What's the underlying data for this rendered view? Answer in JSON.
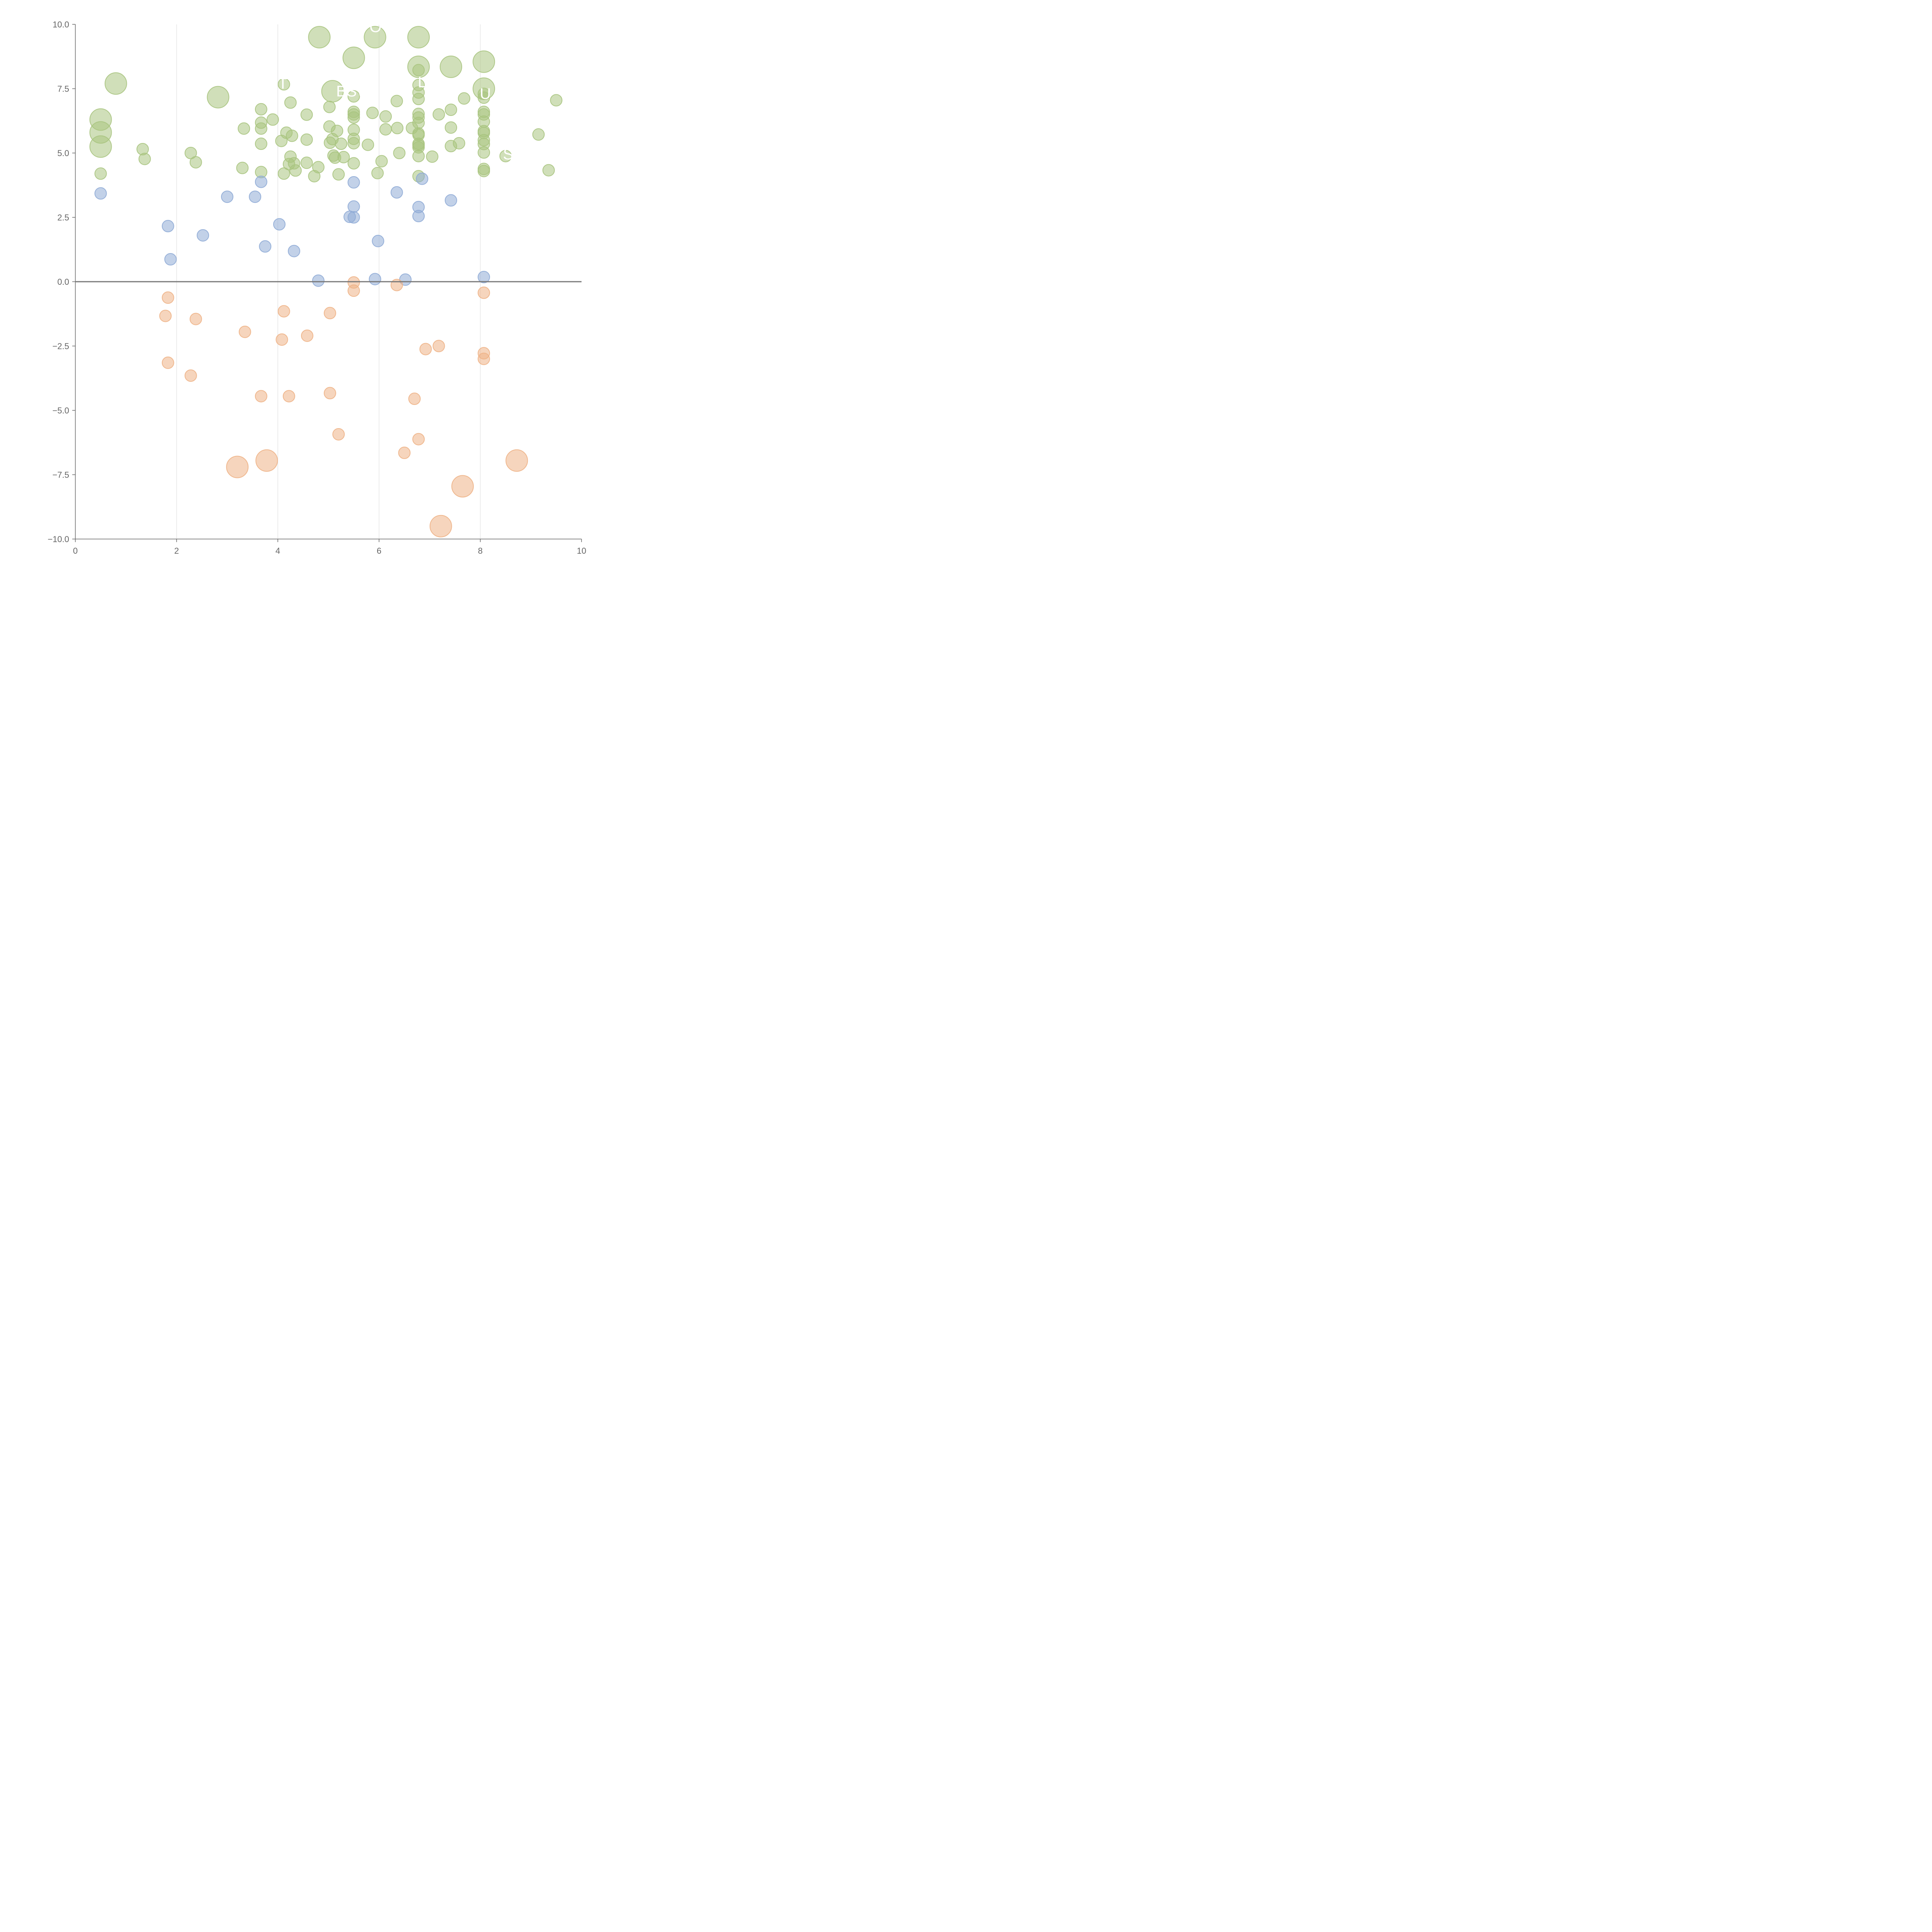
{
  "chart_data": {
    "type": "scatter",
    "subtype": "bubble",
    "title": "",
    "xlabel": "",
    "ylabel": "",
    "xlim": [
      0,
      10
    ],
    "ylim": [
      -10,
      10
    ],
    "x_ticks": [
      0,
      2,
      4,
      6,
      8,
      10
    ],
    "x_tick_labels": [
      "0",
      "2",
      "4",
      "6",
      "8",
      "10"
    ],
    "y_ticks": [
      -10,
      -7.5,
      -5,
      -2.5,
      0,
      2.5,
      5,
      7.5,
      10
    ],
    "y_tick_labels": [
      "−10.0",
      "−7.5",
      "−5.0",
      "−2.5",
      "0.0",
      "2.5",
      "5.0",
      "7.5",
      "10.0"
    ],
    "vertical_grid": [
      2,
      4,
      6,
      8
    ],
    "horizontal_reference_line": 0,
    "legend": "none",
    "series": [
      {
        "color": "#a9c47f",
        "points": [
          [
            0.8,
            7.7,
            2
          ],
          [
            0.5,
            6.3,
            2
          ],
          [
            0.5,
            5.8,
            2
          ],
          [
            0.5,
            5.25,
            2
          ],
          [
            0.5,
            4.2,
            1
          ],
          [
            1.33,
            5.15,
            1
          ],
          [
            1.37,
            4.77,
            1
          ],
          [
            2.28,
            5.0,
            1
          ],
          [
            2.38,
            4.64,
            1
          ],
          [
            2.82,
            7.17,
            2
          ],
          [
            3.33,
            5.95,
            1
          ],
          [
            3.3,
            4.42,
            1
          ],
          [
            3.67,
            6.7,
            1
          ],
          [
            3.67,
            6.18,
            1
          ],
          [
            3.67,
            5.95,
            1
          ],
          [
            3.67,
            5.36,
            1
          ],
          [
            3.67,
            4.26,
            1
          ],
          [
            3.9,
            6.3,
            1
          ],
          [
            4.12,
            7.67,
            1
          ],
          [
            4.07,
            5.47,
            1
          ],
          [
            4.12,
            4.2,
            1
          ],
          [
            4.17,
            5.79,
            1
          ],
          [
            4.25,
            6.96,
            1
          ],
          [
            4.28,
            5.67,
            1
          ],
          [
            4.25,
            4.86,
            1
          ],
          [
            4.22,
            4.57,
            1
          ],
          [
            4.32,
            4.6,
            1
          ],
          [
            4.35,
            4.32,
            1
          ],
          [
            4.57,
            6.49,
            1
          ],
          [
            4.57,
            5.52,
            1
          ],
          [
            4.57,
            4.62,
            1
          ],
          [
            4.72,
            4.1,
            1
          ],
          [
            4.8,
            4.45,
            1
          ],
          [
            4.82,
            9.5,
            2
          ],
          [
            5.02,
            6.03,
            1
          ],
          [
            5.02,
            6.79,
            1
          ],
          [
            5.03,
            5.4,
            1
          ],
          [
            5.08,
            7.4,
            2
          ],
          [
            5.1,
            4.9,
            1
          ],
          [
            5.08,
            5.54,
            1
          ],
          [
            5.13,
            4.82,
            1
          ],
          [
            5.17,
            5.86,
            1
          ],
          [
            5.2,
            4.17,
            1
          ],
          [
            5.25,
            5.36,
            1
          ],
          [
            5.3,
            4.84,
            1
          ],
          [
            5.5,
            8.7,
            2
          ],
          [
            5.5,
            7.2,
            1
          ],
          [
            5.5,
            6.6,
            1
          ],
          [
            5.5,
            6.5,
            1
          ],
          [
            5.5,
            6.38,
            1
          ],
          [
            5.5,
            5.9,
            1
          ],
          [
            5.5,
            5.55,
            1
          ],
          [
            5.5,
            5.38,
            1
          ],
          [
            5.5,
            4.6,
            1
          ],
          [
            5.78,
            5.32,
            1
          ],
          [
            5.87,
            6.56,
            1
          ],
          [
            5.92,
            9.5,
            2
          ],
          [
            5.97,
            4.22,
            1
          ],
          [
            6.05,
            4.68,
            1
          ],
          [
            6.13,
            6.42,
            1
          ],
          [
            6.13,
            5.92,
            1
          ],
          [
            6.35,
            7.02,
            1
          ],
          [
            6.36,
            5.97,
            1
          ],
          [
            6.4,
            5.0,
            1
          ],
          [
            6.65,
            5.97,
            1
          ],
          [
            6.78,
            9.5,
            2
          ],
          [
            6.78,
            8.35,
            2
          ],
          [
            6.78,
            8.22,
            1
          ],
          [
            6.78,
            7.64,
            1
          ],
          [
            6.78,
            7.35,
            1
          ],
          [
            6.78,
            7.1,
            1
          ],
          [
            6.78,
            6.52,
            1
          ],
          [
            6.78,
            6.38,
            1
          ],
          [
            6.78,
            6.17,
            1
          ],
          [
            6.78,
            5.76,
            1
          ],
          [
            6.78,
            5.7,
            1
          ],
          [
            6.78,
            5.36,
            1
          ],
          [
            6.78,
            5.3,
            1
          ],
          [
            6.78,
            5.22,
            1
          ],
          [
            6.78,
            4.88,
            1
          ],
          [
            6.78,
            4.1,
            1
          ],
          [
            7.05,
            4.86,
            1
          ],
          [
            7.18,
            6.5,
            1
          ],
          [
            7.42,
            8.35,
            2
          ],
          [
            7.42,
            6.68,
            1
          ],
          [
            7.42,
            5.99,
            1
          ],
          [
            7.42,
            5.27,
            1
          ],
          [
            7.58,
            5.38,
            1
          ],
          [
            7.68,
            7.12,
            1
          ],
          [
            8.07,
            8.55,
            2
          ],
          [
            8.07,
            7.5,
            2
          ],
          [
            8.07,
            7.3,
            1
          ],
          [
            8.07,
            7.15,
            1
          ],
          [
            8.07,
            6.6,
            1
          ],
          [
            8.07,
            6.5,
            1
          ],
          [
            8.07,
            6.22,
            1
          ],
          [
            8.07,
            5.85,
            1
          ],
          [
            8.07,
            5.78,
            1
          ],
          [
            8.07,
            5.5,
            1
          ],
          [
            8.07,
            5.35,
            1
          ],
          [
            8.07,
            5.02,
            1
          ],
          [
            8.07,
            4.38,
            1
          ],
          [
            8.07,
            4.3,
            1
          ],
          [
            8.5,
            4.88,
            1
          ],
          [
            9.15,
            5.72,
            1
          ],
          [
            9.35,
            4.33,
            1
          ],
          [
            9.5,
            7.05,
            1
          ]
        ]
      },
      {
        "color": "#8fabd6",
        "points": [
          [
            0.5,
            3.43,
            1
          ],
          [
            1.83,
            2.16,
            1
          ],
          [
            1.88,
            0.87,
            1
          ],
          [
            2.52,
            1.8,
            1
          ],
          [
            3.0,
            3.3,
            1
          ],
          [
            3.55,
            3.3,
            1
          ],
          [
            3.67,
            3.88,
            1
          ],
          [
            3.75,
            1.37,
            1
          ],
          [
            4.03,
            2.23,
            1
          ],
          [
            4.32,
            1.19,
            1
          ],
          [
            4.8,
            0.04,
            1
          ],
          [
            5.42,
            2.52,
            1
          ],
          [
            5.5,
            3.86,
            1
          ],
          [
            5.5,
            2.92,
            1
          ],
          [
            5.5,
            2.5,
            1
          ],
          [
            5.92,
            0.1,
            1
          ],
          [
            5.98,
            1.58,
            1
          ],
          [
            6.35,
            3.47,
            1
          ],
          [
            6.52,
            0.08,
            1
          ],
          [
            6.78,
            2.9,
            1
          ],
          [
            6.78,
            2.55,
            1
          ],
          [
            6.85,
            4.0,
            1
          ],
          [
            7.42,
            3.16,
            1
          ],
          [
            8.07,
            0.18,
            1
          ]
        ]
      },
      {
        "color": "#eeb286",
        "points": [
          [
            1.83,
            -0.62,
            1
          ],
          [
            1.78,
            -1.33,
            1
          ],
          [
            1.83,
            -3.15,
            1
          ],
          [
            2.38,
            -1.45,
            1
          ],
          [
            2.28,
            -3.65,
            1
          ],
          [
            3.2,
            -7.2,
            2
          ],
          [
            3.35,
            -1.95,
            1
          ],
          [
            3.67,
            -4.45,
            1
          ],
          [
            3.78,
            -6.95,
            2
          ],
          [
            4.12,
            -1.15,
            1
          ],
          [
            4.08,
            -2.25,
            1
          ],
          [
            4.22,
            -4.45,
            1
          ],
          [
            4.58,
            -2.1,
            1
          ],
          [
            5.03,
            -1.22,
            1
          ],
          [
            5.03,
            -4.33,
            1
          ],
          [
            5.2,
            -5.93,
            1
          ],
          [
            5.5,
            -0.03,
            1
          ],
          [
            5.5,
            -0.35,
            1
          ],
          [
            6.35,
            -0.13,
            1
          ],
          [
            6.5,
            -6.65,
            1
          ],
          [
            6.7,
            -4.55,
            1
          ],
          [
            6.78,
            -6.12,
            1
          ],
          [
            6.92,
            -2.62,
            1
          ],
          [
            7.18,
            -2.5,
            1
          ],
          [
            7.22,
            -9.5,
            2
          ],
          [
            7.65,
            -7.95,
            2
          ],
          [
            8.07,
            -0.43,
            1
          ],
          [
            8.07,
            -2.78,
            1
          ],
          [
            8.07,
            -3.0,
            1
          ],
          [
            8.72,
            -6.95,
            2
          ]
        ]
      }
    ],
    "labels": [
      {
        "text": "T",
        "x": 4.1,
        "y": 7.5
      },
      {
        "text": "BSW",
        "x": 5.5,
        "y": 7.2
      },
      {
        "text": "O",
        "x": 5.93,
        "y": 9.7
      },
      {
        "text": "L",
        "x": 6.85,
        "y": 7.55
      },
      {
        "text": "U",
        "x": 8.1,
        "y": 7.1
      },
      {
        "text": "S",
        "x": 8.55,
        "y": 4.75
      }
    ]
  }
}
